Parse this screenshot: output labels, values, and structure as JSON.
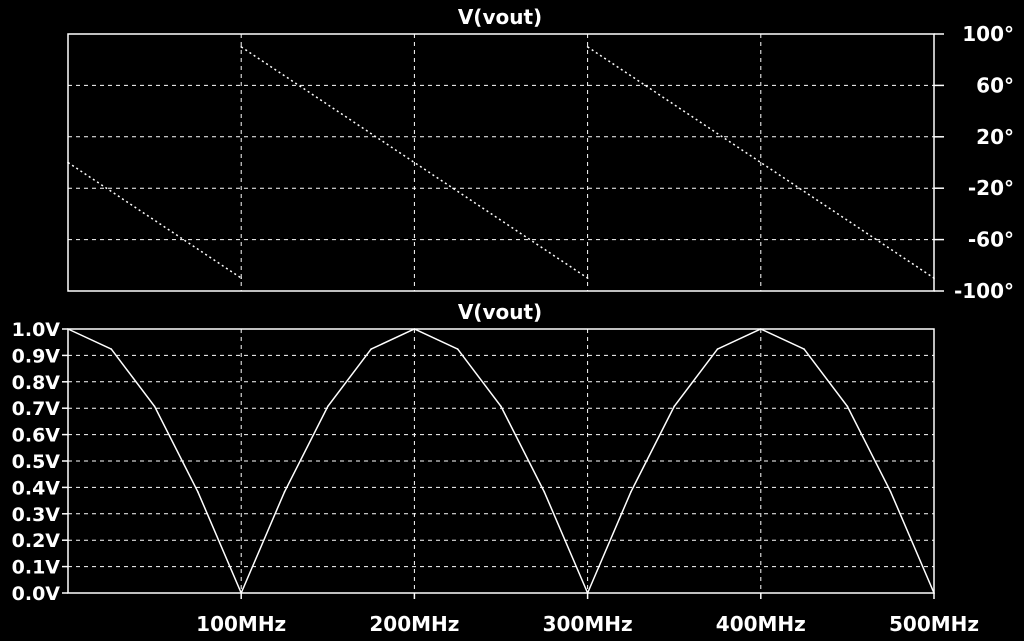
{
  "theme": {
    "background": "#000000",
    "foreground": "#ffffff"
  },
  "chart_data": [
    {
      "type": "line",
      "title": "V(vout)",
      "xlabel": "",
      "ylabel": "",
      "xlim": [
        0,
        500
      ],
      "x_unit": "MHz",
      "ylim": [
        -100,
        100
      ],
      "y_ticks": [
        100,
        60,
        20,
        -20,
        -60,
        -100
      ],
      "y_tick_labels": [
        "100°",
        "60°",
        "20°",
        "-20°",
        "-60°",
        "-100°"
      ],
      "y_axis_side": "right",
      "grid": true,
      "line_style": "dotted",
      "series": [
        {
          "segments": [
            {
              "x": [
                0,
                100
              ],
              "y": [
                0,
                -90
              ]
            },
            {
              "x": [
                100,
                300
              ],
              "y": [
                90,
                -90
              ]
            },
            {
              "x": [
                300,
                500
              ],
              "y": [
                90,
                -90
              ]
            }
          ]
        }
      ]
    },
    {
      "type": "line",
      "title": "V(vout)",
      "xlabel": "",
      "ylabel": "",
      "xlim": [
        0,
        500
      ],
      "x_unit": "MHz",
      "ylim": [
        0,
        1
      ],
      "y_ticks": [
        1.0,
        0.9,
        0.8,
        0.7,
        0.6,
        0.5,
        0.4,
        0.3,
        0.2,
        0.1,
        0.0
      ],
      "y_tick_labels": [
        "1.0V",
        "0.9V",
        "0.8V",
        "0.7V",
        "0.6V",
        "0.5V",
        "0.4V",
        "0.3V",
        "0.2V",
        "0.1V",
        "0.0V"
      ],
      "x_ticks": [
        100,
        200,
        300,
        400,
        500
      ],
      "x_tick_labels": [
        "100MHz",
        "200MHz",
        "300MHz",
        "400MHz",
        "500MHz"
      ],
      "y_axis_side": "left",
      "grid": true,
      "line_style": "solid",
      "series": [
        {
          "x": [
            0,
            25,
            50,
            75,
            100,
            125,
            150,
            175,
            200,
            225,
            250,
            275,
            300,
            325,
            350,
            375,
            400,
            425,
            450,
            475,
            500
          ],
          "y": [
            1.0,
            0.924,
            0.707,
            0.383,
            0.0,
            0.383,
            0.707,
            0.924,
            1.0,
            0.924,
            0.707,
            0.383,
            0.0,
            0.383,
            0.707,
            0.924,
            1.0,
            0.924,
            0.707,
            0.383,
            0.0
          ]
        }
      ]
    }
  ]
}
